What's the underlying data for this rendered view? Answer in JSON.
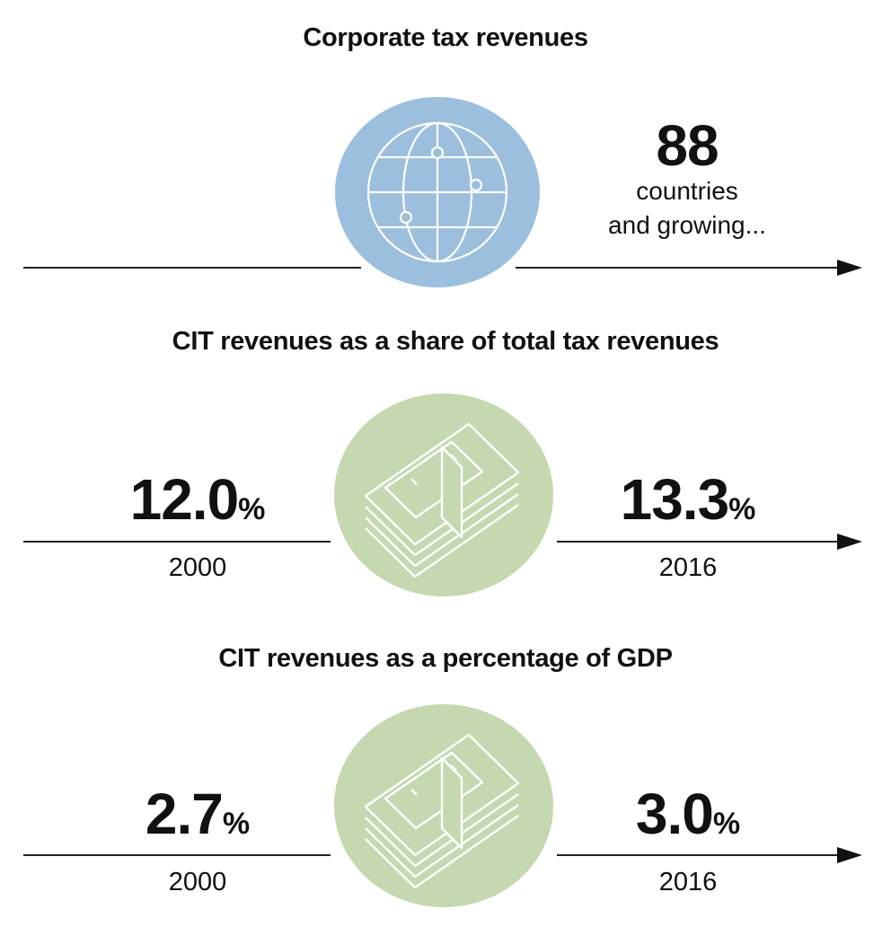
{
  "section1": {
    "title": "Corporate tax revenues",
    "icon": "globe-icon",
    "circle_color": "#9cbfde",
    "count": "88",
    "note_line1": "countries",
    "note_line2": "and growing..."
  },
  "section2": {
    "title": "CIT revenues as a share of total tax revenues",
    "icon": "cash-stack-icon",
    "circle_color": "#c5d8b0",
    "left": {
      "value": "12.0",
      "unit": "%",
      "year": "2000"
    },
    "right": {
      "value": "13.3",
      "unit": "%",
      "year": "2016"
    }
  },
  "section3": {
    "title": "CIT revenues as a percentage of GDP",
    "icon": "cash-stack-icon",
    "circle_color": "#c5d8b0",
    "left": {
      "value": "2.7",
      "unit": "%",
      "year": "2000"
    },
    "right": {
      "value": "3.0",
      "unit": "%",
      "year": "2016"
    }
  }
}
